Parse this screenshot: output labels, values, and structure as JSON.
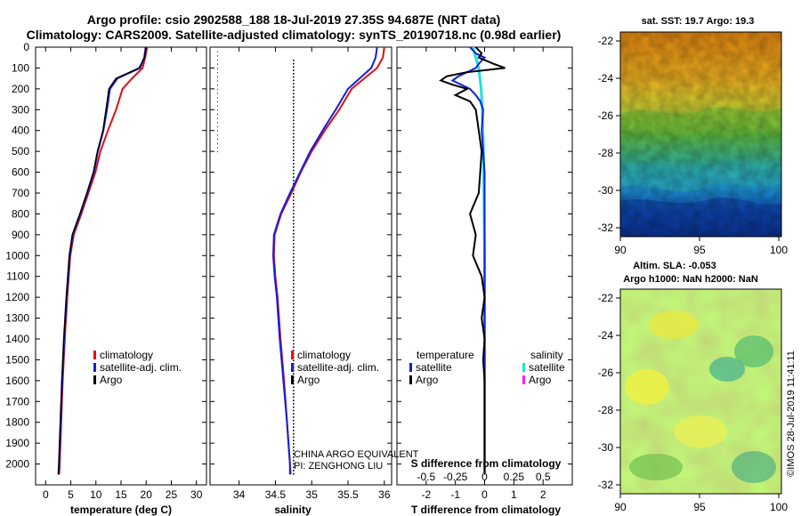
{
  "title_line1": "Argo profile: csio 2902588_188 18-Jul-2019 27.35S 94.687E (NRT data)",
  "title_line2": "Climatology: CARS2009. Satellite-adjusted climatology: synTS_20190718.nc (0.98d earlier)",
  "colors": {
    "climatology": "#e01010",
    "satellite": "#1020e0",
    "argo": "#000000",
    "sat_salinity": "#20e0e0",
    "argo_salinity": "#ff20ff"
  },
  "chart_data": [
    {
      "type": "line",
      "name": "temperature",
      "xlabel": "temperature (deg C)",
      "ylabel": "",
      "xlim": [
        -2,
        32
      ],
      "ylim": [
        2100,
        0
      ],
      "xticks": [
        0,
        5,
        10,
        15,
        20,
        25,
        30
      ],
      "yticks": [
        0,
        100,
        200,
        300,
        400,
        500,
        600,
        700,
        800,
        900,
        1000,
        1100,
        1200,
        1300,
        1400,
        1500,
        1600,
        1700,
        1800,
        1900,
        2000
      ],
      "depth": [
        0,
        50,
        100,
        150,
        200,
        300,
        400,
        500,
        600,
        700,
        800,
        900,
        1000,
        1200,
        1400,
        1600,
        1800,
        2000,
        2050
      ],
      "series": [
        {
          "name": "climatology",
          "values": [
            20.2,
            19.8,
            19.3,
            17.2,
            15.3,
            14.0,
            12.4,
            10.9,
            9.9,
            8.5,
            7.1,
            5.6,
            4.9,
            4.3,
            3.8,
            3.4,
            3.1,
            2.8,
            2.7
          ]
        },
        {
          "name": "satellite-adj. clim.",
          "values": [
            19.9,
            19.6,
            18.8,
            14.3,
            12.8,
            12.2,
            11.5,
            10.4,
            9.6,
            8.3,
            6.9,
            5.4,
            4.8,
            4.2,
            3.7,
            3.3,
            3.0,
            2.7,
            2.6
          ]
        },
        {
          "name": "Argo",
          "values": [
            20.0,
            19.7,
            18.6,
            14.0,
            12.6,
            12.0,
            11.4,
            10.3,
            9.5,
            8.2,
            6.8,
            5.3,
            4.7,
            4.1,
            3.6,
            3.2,
            2.9,
            2.6,
            2.5
          ]
        }
      ],
      "legend": [
        "climatology",
        "satellite-adj. clim.",
        "Argo"
      ]
    },
    {
      "type": "line",
      "name": "salinity",
      "xlabel": "salinity",
      "ylabel": "",
      "xlim": [
        33.6,
        36.1
      ],
      "ylim": [
        2100,
        0
      ],
      "xticks": [
        34,
        34.5,
        35,
        35.5,
        36
      ],
      "depth": [
        0,
        50,
        100,
        200,
        300,
        400,
        500,
        600,
        700,
        800,
        900,
        1000,
        1100,
        1200,
        1400,
        1600,
        1800,
        2000,
        2050
      ],
      "series": [
        {
          "name": "climatology",
          "values": [
            36.0,
            35.98,
            35.9,
            35.55,
            35.38,
            35.18,
            35.0,
            34.85,
            34.72,
            34.58,
            34.49,
            34.48,
            34.5,
            34.53,
            34.57,
            34.62,
            34.66,
            34.7,
            34.71
          ]
        },
        {
          "name": "satellite-adj. clim.",
          "values": [
            35.9,
            35.88,
            35.82,
            35.5,
            35.33,
            35.15,
            34.98,
            34.84,
            34.7,
            34.57,
            34.48,
            34.47,
            34.49,
            34.52,
            34.56,
            34.61,
            34.66,
            34.7,
            34.7
          ]
        },
        {
          "name": "Argo",
          "values": []
        }
      ],
      "legend": [
        "climatology",
        "satellite-adj. clim.",
        "Argo"
      ],
      "annotation_line1": "CHINA ARGO EQUIVALENT",
      "annotation_line2": "PI: ZENGHONG LIU"
    },
    {
      "type": "line",
      "name": "differences",
      "xlabel": "T difference from climatology",
      "xlabel_top": "S difference from climatology",
      "xlim": [
        -3,
        3
      ],
      "ylim": [
        2100,
        0
      ],
      "xticks": [
        -2,
        -1,
        0,
        1,
        2
      ],
      "xticks_top": [
        -0.5,
        -0.25,
        0,
        0.25,
        0.5
      ],
      "depth_T": [
        0,
        30,
        50,
        80,
        100,
        120,
        140,
        160,
        180,
        200,
        230,
        260,
        300,
        400,
        500,
        600,
        700,
        800,
        900,
        1000,
        1100,
        1200,
        1300,
        1400,
        1500,
        1600,
        1800,
        2000,
        2050
      ],
      "T_argo": [
        -0.3,
        -0.1,
        -0.2,
        0.3,
        0.7,
        -0.6,
        -1.3,
        -1.5,
        -1.1,
        -0.6,
        -1.0,
        -0.5,
        -0.3,
        -0.2,
        -0.1,
        -0.15,
        -0.2,
        -0.5,
        -0.3,
        -0.4,
        -0.1,
        0.0,
        -0.1,
        0.0,
        -0.05,
        0.0,
        0.0,
        0.0,
        0.0
      ],
      "T_sat": [
        -0.5,
        -0.3,
        0.0,
        -0.2,
        -0.3,
        -0.6,
        -0.9,
        -1.1,
        -0.8,
        -0.5,
        -0.3,
        -0.15,
        -0.05,
        -0.1,
        -0.05,
        0.0,
        0.0,
        0.0,
        0.0,
        0.0,
        0.0,
        0.0,
        0.0,
        0.0,
        0.0,
        0.0,
        0.0,
        0.0,
        0.0
      ],
      "depth_S": [
        0,
        100,
        200,
        300,
        500,
        1000,
        1500,
        2050
      ],
      "S_sat": [
        -0.1,
        -0.05,
        -0.03,
        -0.02,
        -0.01,
        0.0,
        0.0,
        0.0
      ],
      "legend_title_left": "temperature",
      "legend_title_right": "salinity",
      "legend": [
        "satellite",
        "Argo",
        "satellite",
        "Argo"
      ]
    }
  ],
  "map_top": {
    "label": "sat. SST: 19.7 Argo: 19.3",
    "lat_ticks": [
      "-22",
      "-24",
      "-26",
      "-28",
      "-30",
      "-32"
    ],
    "lon_ticks": [
      "90",
      "95",
      "100"
    ]
  },
  "map_bottom": {
    "label1": "Altim. SLA: -0.053",
    "label2": "Argo h1000: NaN h2000: NaN",
    "lat_ticks": [
      "-22",
      "-24",
      "-26",
      "-28",
      "-30",
      "-32"
    ],
    "lon_ticks": [
      "90",
      "95",
      "100"
    ]
  },
  "credit": "©IMOS 28-Jul-2019 11:41:11"
}
